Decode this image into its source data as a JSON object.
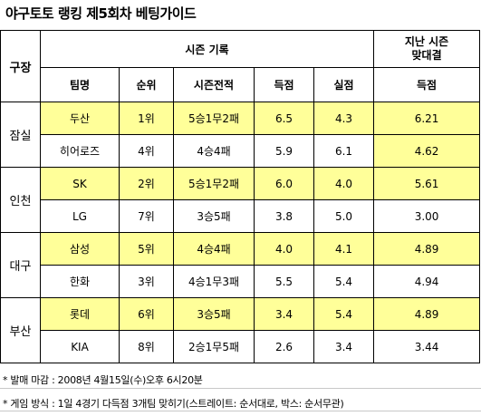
{
  "title": "야구토토 랭킹 제5회차 베팅가이드",
  "header": {
    "venue": "구장",
    "season_record": "시즌 기록",
    "last_season_line1": "지난 시즌",
    "last_season_line2": "맞대결",
    "team": "팀명",
    "rank": "순위",
    "season_result": "시즌전적",
    "scored": "득점",
    "conceded": "실점",
    "last_scored": "득점"
  },
  "groups": [
    {
      "venue": "잠실",
      "rows": [
        {
          "team": "두산",
          "rank": "1위",
          "record": "5승1무2패",
          "scored": "6.5",
          "conceded": "4.3",
          "last": "6.21"
        },
        {
          "team": "히어로즈",
          "rank": "4위",
          "record": "4승4패",
          "scored": "5.9",
          "conceded": "6.1",
          "last": "4.62"
        }
      ]
    },
    {
      "venue": "인천",
      "rows": [
        {
          "team": "SK",
          "rank": "2위",
          "record": "5승1무2패",
          "scored": "6.0",
          "conceded": "4.0",
          "last": "5.61"
        },
        {
          "team": "LG",
          "rank": "7위",
          "record": "3승5패",
          "scored": "3.8",
          "conceded": "5.0",
          "last": "3.00"
        }
      ]
    },
    {
      "venue": "대구",
      "rows": [
        {
          "team": "삼성",
          "rank": "5위",
          "record": "4승4패",
          "scored": "4.0",
          "conceded": "4.1",
          "last": "4.89"
        },
        {
          "team": "한화",
          "rank": "3위",
          "record": "4승1무3패",
          "scored": "5.5",
          "conceded": "5.4",
          "last": "4.94"
        }
      ]
    },
    {
      "venue": "부산",
      "rows": [
        {
          "team": "롯데",
          "rank": "6위",
          "record": "3승5패",
          "scored": "3.4",
          "conceded": "5.4",
          "last": "4.89"
        },
        {
          "team": "KIA",
          "rank": "8위",
          "record": "2승1무5패",
          "scored": "2.6",
          "conceded": "3.4",
          "last": "3.44"
        }
      ]
    }
  ],
  "notes": {
    "deadline": "* 발매 마감 : 2008년 4월15일(수)오후 6시20분",
    "method": "* 게임 방식 : 1일 4경기 다득점 3개팀 맞히기(스트레이트: 순서대로, 박스: 순서무관)"
  },
  "colors": {
    "highlight": "#ffff99",
    "border": "#000000"
  }
}
